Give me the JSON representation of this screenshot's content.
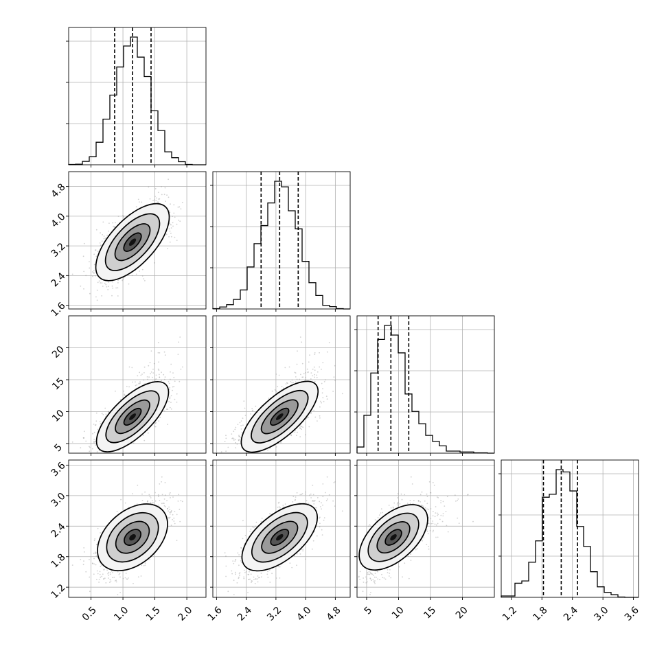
{
  "chart_data": {
    "type": "corner",
    "parameters": [
      {
        "range": [
          0.15,
          2.3
        ],
        "ticks": [
          "0.5",
          "1.0",
          "1.5",
          "2.0"
        ],
        "tick_values": [
          0.5,
          1.0,
          1.5,
          2.0
        ],
        "mean": 1.15,
        "sd": 0.27,
        "skew": 0,
        "quantiles": [
          0.87,
          1.15,
          1.44
        ]
      },
      {
        "range": [
          1.5,
          5.2
        ],
        "ticks": [
          "1.6",
          "2.4",
          "3.2",
          "4.0",
          "4.8"
        ],
        "tick_values": [
          1.6,
          2.4,
          3.2,
          4.0,
          4.8
        ],
        "mean": 3.3,
        "sd": 0.5,
        "skew": 0,
        "quantiles": [
          2.8,
          3.3,
          3.8
        ]
      },
      {
        "range": [
          3.5,
          25.0
        ],
        "ticks": [
          "5",
          "10",
          "15",
          "20"
        ],
        "tick_values": [
          5,
          10,
          15,
          20
        ],
        "mean": 9.2,
        "sd": 2.6,
        "skew": 1,
        "quantiles": [
          6.8,
          8.8,
          11.6
        ]
      },
      {
        "range": [
          1.0,
          3.7
        ],
        "ticks": [
          "1.2",
          "1.8",
          "2.4",
          "3.0",
          "3.6"
        ],
        "tick_values": [
          1.2,
          1.8,
          2.4,
          3.0,
          3.6
        ],
        "mean": 2.18,
        "sd": 0.3,
        "skew": 0,
        "quantiles": [
          1.83,
          2.18,
          2.5
        ]
      }
    ],
    "correlations": [
      [
        0,
        1,
        0.65
      ],
      [
        0,
        2,
        0.7
      ],
      [
        1,
        2,
        0.72
      ],
      [
        0,
        3,
        0.4
      ],
      [
        1,
        3,
        0.6
      ],
      [
        2,
        3,
        0.55
      ]
    ],
    "grid": true,
    "quantile_levels": [
      0.16,
      0.5,
      0.84
    ]
  }
}
